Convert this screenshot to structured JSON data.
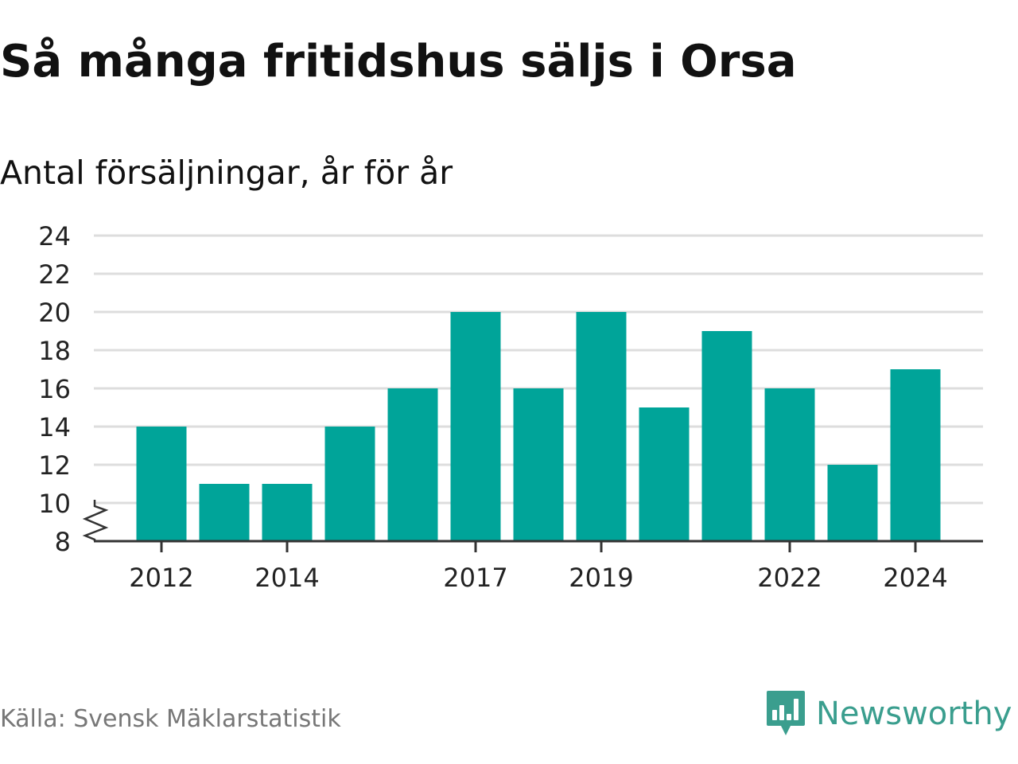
{
  "header": {
    "title": "Så många fritidshus säljs i Orsa",
    "subtitle": "Antal försäljningar, år för år"
  },
  "footer": {
    "source": "Källa: Svensk Mäklarstatistik",
    "brand_name": "Newsworthy",
    "brand_icon": "newsworthy-logo-icon"
  },
  "colors": {
    "bar": "#00a499",
    "grid": "#dddddd",
    "axis": "#333333",
    "brand": "#3a9e8e"
  },
  "chart_data": {
    "type": "bar",
    "title": "Så många fritidshus säljs i Orsa",
    "subtitle": "Antal försäljningar, år för år",
    "xlabel": "",
    "ylabel": "",
    "categories": [
      "2012",
      "2013",
      "2014",
      "2015",
      "2016",
      "2017",
      "2018",
      "2019",
      "2020",
      "2021",
      "2022",
      "2023",
      "2024"
    ],
    "values": [
      14,
      11,
      11,
      14,
      16,
      20,
      16,
      20,
      15,
      19,
      16,
      12,
      17
    ],
    "ylim": [
      8,
      24
    ],
    "yticks": [
      8,
      10,
      12,
      14,
      16,
      18,
      20,
      22,
      24
    ],
    "xtick_labels": [
      "2012",
      "2014",
      "2017",
      "2019",
      "2022",
      "2024"
    ],
    "y_axis_break": true,
    "grid": true,
    "legend": "none"
  }
}
